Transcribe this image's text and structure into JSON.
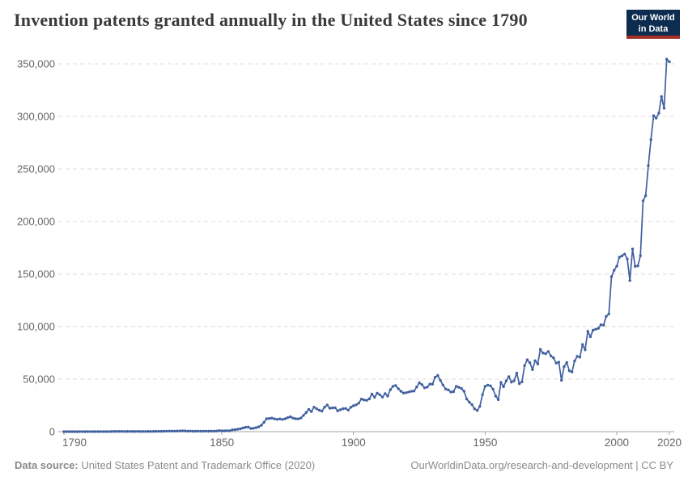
{
  "header": {
    "title": "Invention patents granted annually in the United States since 1790",
    "logo": {
      "line1": "Our World",
      "line2": "in Data"
    }
  },
  "footer": {
    "source_label": "Data source:",
    "source_text": " United States Patent and Trademark Office (2020)",
    "credit": "OurWorldinData.org/research-and-development | CC BY"
  },
  "colors": {
    "line": "#40609F",
    "grid": "#dcdcdc",
    "axis": "#a3a3a3",
    "tick_text": "#666666",
    "title": "#3a3a3a",
    "footer_text": "#8a8a8a",
    "logo_bg": "#0D2D50",
    "logo_stripe": "#A52F25"
  },
  "chart_data": {
    "type": "line",
    "title": "Invention patents granted annually in the United States since 1790",
    "xlabel": "",
    "ylabel": "",
    "xlim": [
      1790,
      2020
    ],
    "ylim": [
      0,
      350000
    ],
    "xticks": [
      1790,
      1850,
      1900,
      1950,
      2000,
      2020
    ],
    "yticks": [
      0,
      50000,
      100000,
      150000,
      200000,
      250000,
      300000,
      350000
    ],
    "grid": "horizontal-dashed",
    "legend": "none",
    "markers": true,
    "line_color": "#40609F",
    "series": [
      {
        "name": "Invention patents granted",
        "x": [
          1790,
          1791,
          1792,
          1793,
          1794,
          1795,
          1796,
          1797,
          1798,
          1799,
          1800,
          1801,
          1802,
          1803,
          1804,
          1805,
          1806,
          1807,
          1808,
          1809,
          1810,
          1811,
          1812,
          1813,
          1814,
          1815,
          1816,
          1817,
          1818,
          1819,
          1820,
          1821,
          1822,
          1823,
          1824,
          1825,
          1826,
          1827,
          1828,
          1829,
          1830,
          1831,
          1832,
          1833,
          1834,
          1835,
          1836,
          1837,
          1838,
          1839,
          1840,
          1841,
          1842,
          1843,
          1844,
          1845,
          1846,
          1847,
          1848,
          1849,
          1850,
          1851,
          1852,
          1853,
          1854,
          1855,
          1856,
          1857,
          1858,
          1859,
          1860,
          1861,
          1862,
          1863,
          1864,
          1865,
          1866,
          1867,
          1868,
          1869,
          1870,
          1871,
          1872,
          1873,
          1874,
          1875,
          1876,
          1877,
          1878,
          1879,
          1880,
          1881,
          1882,
          1883,
          1884,
          1885,
          1886,
          1887,
          1888,
          1889,
          1890,
          1891,
          1892,
          1893,
          1894,
          1895,
          1896,
          1897,
          1898,
          1899,
          1900,
          1901,
          1902,
          1903,
          1904,
          1905,
          1906,
          1907,
          1908,
          1909,
          1910,
          1911,
          1912,
          1913,
          1914,
          1915,
          1916,
          1917,
          1918,
          1919,
          1920,
          1921,
          1922,
          1923,
          1924,
          1925,
          1926,
          1927,
          1928,
          1929,
          1930,
          1931,
          1932,
          1933,
          1934,
          1935,
          1936,
          1937,
          1938,
          1939,
          1940,
          1941,
          1942,
          1943,
          1944,
          1945,
          1946,
          1947,
          1948,
          1949,
          1950,
          1951,
          1952,
          1953,
          1954,
          1955,
          1956,
          1957,
          1958,
          1959,
          1960,
          1961,
          1962,
          1963,
          1964,
          1965,
          1966,
          1967,
          1968,
          1969,
          1970,
          1971,
          1972,
          1973,
          1974,
          1975,
          1976,
          1977,
          1978,
          1979,
          1980,
          1981,
          1982,
          1983,
          1984,
          1985,
          1986,
          1987,
          1988,
          1989,
          1990,
          1991,
          1992,
          1993,
          1994,
          1995,
          1996,
          1997,
          1998,
          1999,
          2000,
          2001,
          2002,
          2003,
          2004,
          2005,
          2006,
          2007,
          2008,
          2009,
          2010,
          2011,
          2012,
          2013,
          2014,
          2015,
          2016,
          2017,
          2018,
          2019,
          2020
        ],
        "values": [
          3,
          33,
          11,
          20,
          22,
          12,
          44,
          51,
          28,
          44,
          41,
          44,
          65,
          97,
          84,
          57,
          63,
          99,
          158,
          203,
          223,
          215,
          238,
          181,
          210,
          173,
          206,
          174,
          222,
          156,
          155,
          168,
          200,
          173,
          228,
          304,
          323,
          331,
          368,
          447,
          544,
          573,
          474,
          586,
          630,
          752,
          702,
          426,
          514,
          404,
          458,
          490,
          488,
          493,
          478,
          473,
          566,
          495,
          583,
          984,
          883,
          752,
          885,
          844,
          1755,
          1881,
          2302,
          2674,
          3455,
          4160,
          4357,
          3020,
          3214,
          3773,
          4630,
          6088,
          8863,
          12277,
          12526,
          12931,
          12137,
          11659,
          12180,
          11616,
          12230,
          13291,
          14169,
          12920,
          12345,
          12125,
          12903,
          15500,
          18091,
          21162,
          19118,
          23285,
          21767,
          20403,
          19551,
          23324,
          25313,
          22312,
          22647,
          22750,
          19855,
          20856,
          21822,
          22067,
          20377,
          23278,
          24644,
          25546,
          27119,
          31029,
          30258,
          29775,
          31170,
          35859,
          32735,
          36561,
          35141,
          32856,
          36198,
          33917,
          39892,
          43118,
          43892,
          40935,
          38452,
          36797,
          37060,
          37798,
          38369,
          38616,
          42574,
          46432,
          44733,
          41717,
          42357,
          45267,
          45226,
          51756,
          53458,
          48774,
          44420,
          40618,
          39782,
          37683,
          38061,
          43073,
          42238,
          41109,
          38449,
          31054,
          28053,
          25695,
          21803,
          20139,
          23963,
          35131,
          43040,
          44326,
          43616,
          40468,
          33809,
          30432,
          46817,
          42744,
          48330,
          52408,
          47170,
          48368,
          55691,
          45679,
          47376,
          62857,
          68406,
          65652,
          59104,
          67559,
          64429,
          78317,
          74810,
          74143,
          76278,
          71994,
          70226,
          65269,
          66102,
          48854,
          61819,
          65771,
          57888,
          56860,
          67200,
          71661,
          70860,
          82952,
          77924,
          95537,
          90365,
          96511,
          97444,
          98342,
          101676,
          101419,
          109645,
          111984,
          147520,
          153485,
          157494,
          166035,
          167331,
          169023,
          164290,
          143806,
          173772,
          157282,
          157772,
          167349,
          219614,
          224505,
          253155,
          277835,
          300678,
          298407,
          303049,
          318829,
          307759,
          354430,
          352013
        ]
      }
    ]
  }
}
